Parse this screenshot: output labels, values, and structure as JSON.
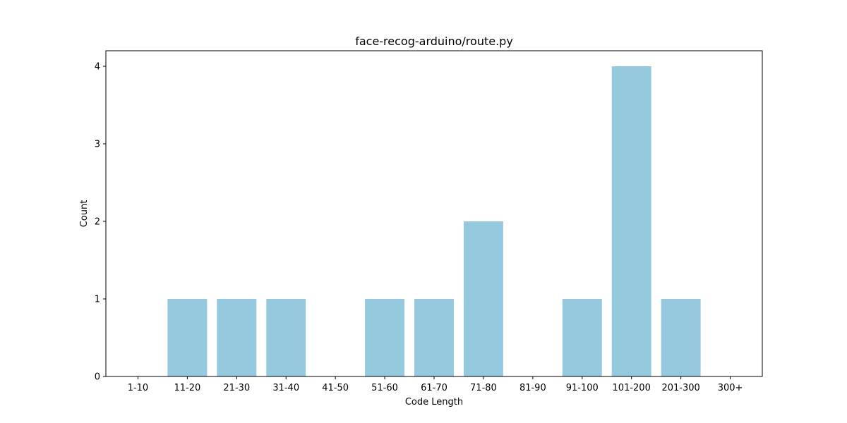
{
  "chart_data": {
    "type": "bar",
    "title": "face-recog-arduino/route.py",
    "xlabel": "Code Length",
    "ylabel": "Count",
    "categories": [
      "1-10",
      "11-20",
      "21-30",
      "31-40",
      "41-50",
      "51-60",
      "61-70",
      "71-80",
      "81-90",
      "91-100",
      "101-200",
      "201-300",
      "300+"
    ],
    "values": [
      0,
      1,
      1,
      1,
      0,
      1,
      1,
      2,
      0,
      1,
      4,
      1,
      0
    ],
    "yticks": [
      0,
      1,
      2,
      3,
      4
    ],
    "ylim": [
      0,
      4.2
    ],
    "grid": false,
    "bar_color": "#95c9de"
  }
}
